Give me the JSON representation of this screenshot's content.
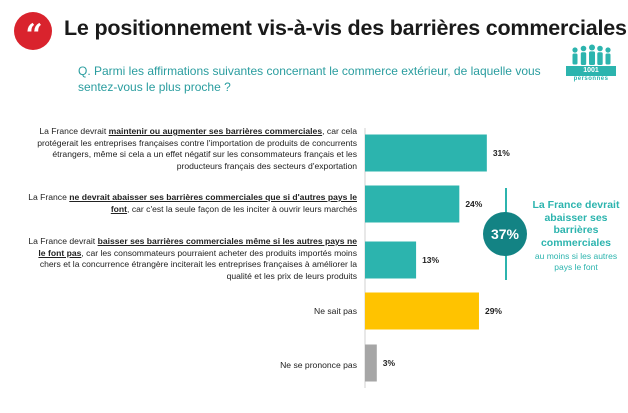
{
  "header": {
    "title": "Le positionnement vis-à-vis des barrières commerciales",
    "quote_glyph": "“",
    "logo_number": "1001",
    "logo_sub": "personnes"
  },
  "question": "Q. Parmi les affirmations suivantes concernant le commerce extérieur, de laquelle vous sentez-vous le plus proche ?",
  "rows": [
    {
      "pre": "La France devrait ",
      "bold": "maintenir ou augmenter ses barrières commerciales",
      "post": ", car cela protégerait les entreprises françaises contre l'importation de produits de concurrents étrangers, même si cela a un effet négatif sur les consommateurs français et les producteurs français des secteurs d'exportation"
    },
    {
      "pre": "La France ",
      "bold": "ne devrait abaisser ses barrières commerciales que si d'autres pays le font",
      "post": ", car c'est la seule façon de les inciter à ouvrir leurs marchés"
    },
    {
      "pre": "La France devrait ",
      "bold": "baisser ses barrières commerciales même si les autres pays ne le font pas",
      "post": ", car les consommateurs pourraient acheter des produits importés moins chers et la concurrence étrangère inciterait les entreprises françaises à améliorer la qualité et les prix de leurs produits"
    },
    {
      "pre": "",
      "bold": "",
      "post": "Ne sait pas"
    },
    {
      "pre": "",
      "bold": "",
      "post": "Ne se prononce pas"
    }
  ],
  "chart_data": {
    "type": "bar",
    "orientation": "horizontal",
    "categories": [
      "La France devrait maintenir ou augmenter ses barrières commerciales",
      "La France ne devrait abaisser ses barrières commerciales que si d'autres pays le font",
      "La France devrait baisser ses barrières commerciales même si les autres pays ne le font pas",
      "Ne sait pas",
      "Ne se prononce pas"
    ],
    "values": [
      31,
      24,
      13,
      29,
      3
    ],
    "value_labels": [
      "31%",
      "24%",
      "13%",
      "29%",
      "3%"
    ],
    "colors": [
      "#2cb4ae",
      "#2cb4ae",
      "#2cb4ae",
      "#ffc300",
      "#a6a6a6"
    ],
    "unit": "%"
  },
  "callout": {
    "value": "37%",
    "bold_text": "La France devrait abaisser ses barrières commerciales",
    "small_text": "au moins si les autres pays le font",
    "color": "#2cb4ae",
    "circle_color": "#138384"
  }
}
